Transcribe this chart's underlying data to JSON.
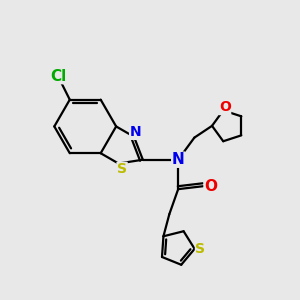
{
  "bg_color": "#e8e8e8",
  "bond_color": "#000000",
  "bond_width": 1.6,
  "atom_colors": {
    "N": "#0000ee",
    "O": "#ee0000",
    "S": "#bbbb00",
    "Cl": "#00aa00",
    "C": "#000000"
  },
  "font_size_atom": 10,
  "xlim": [
    0,
    10
  ],
  "ylim": [
    0,
    10
  ]
}
